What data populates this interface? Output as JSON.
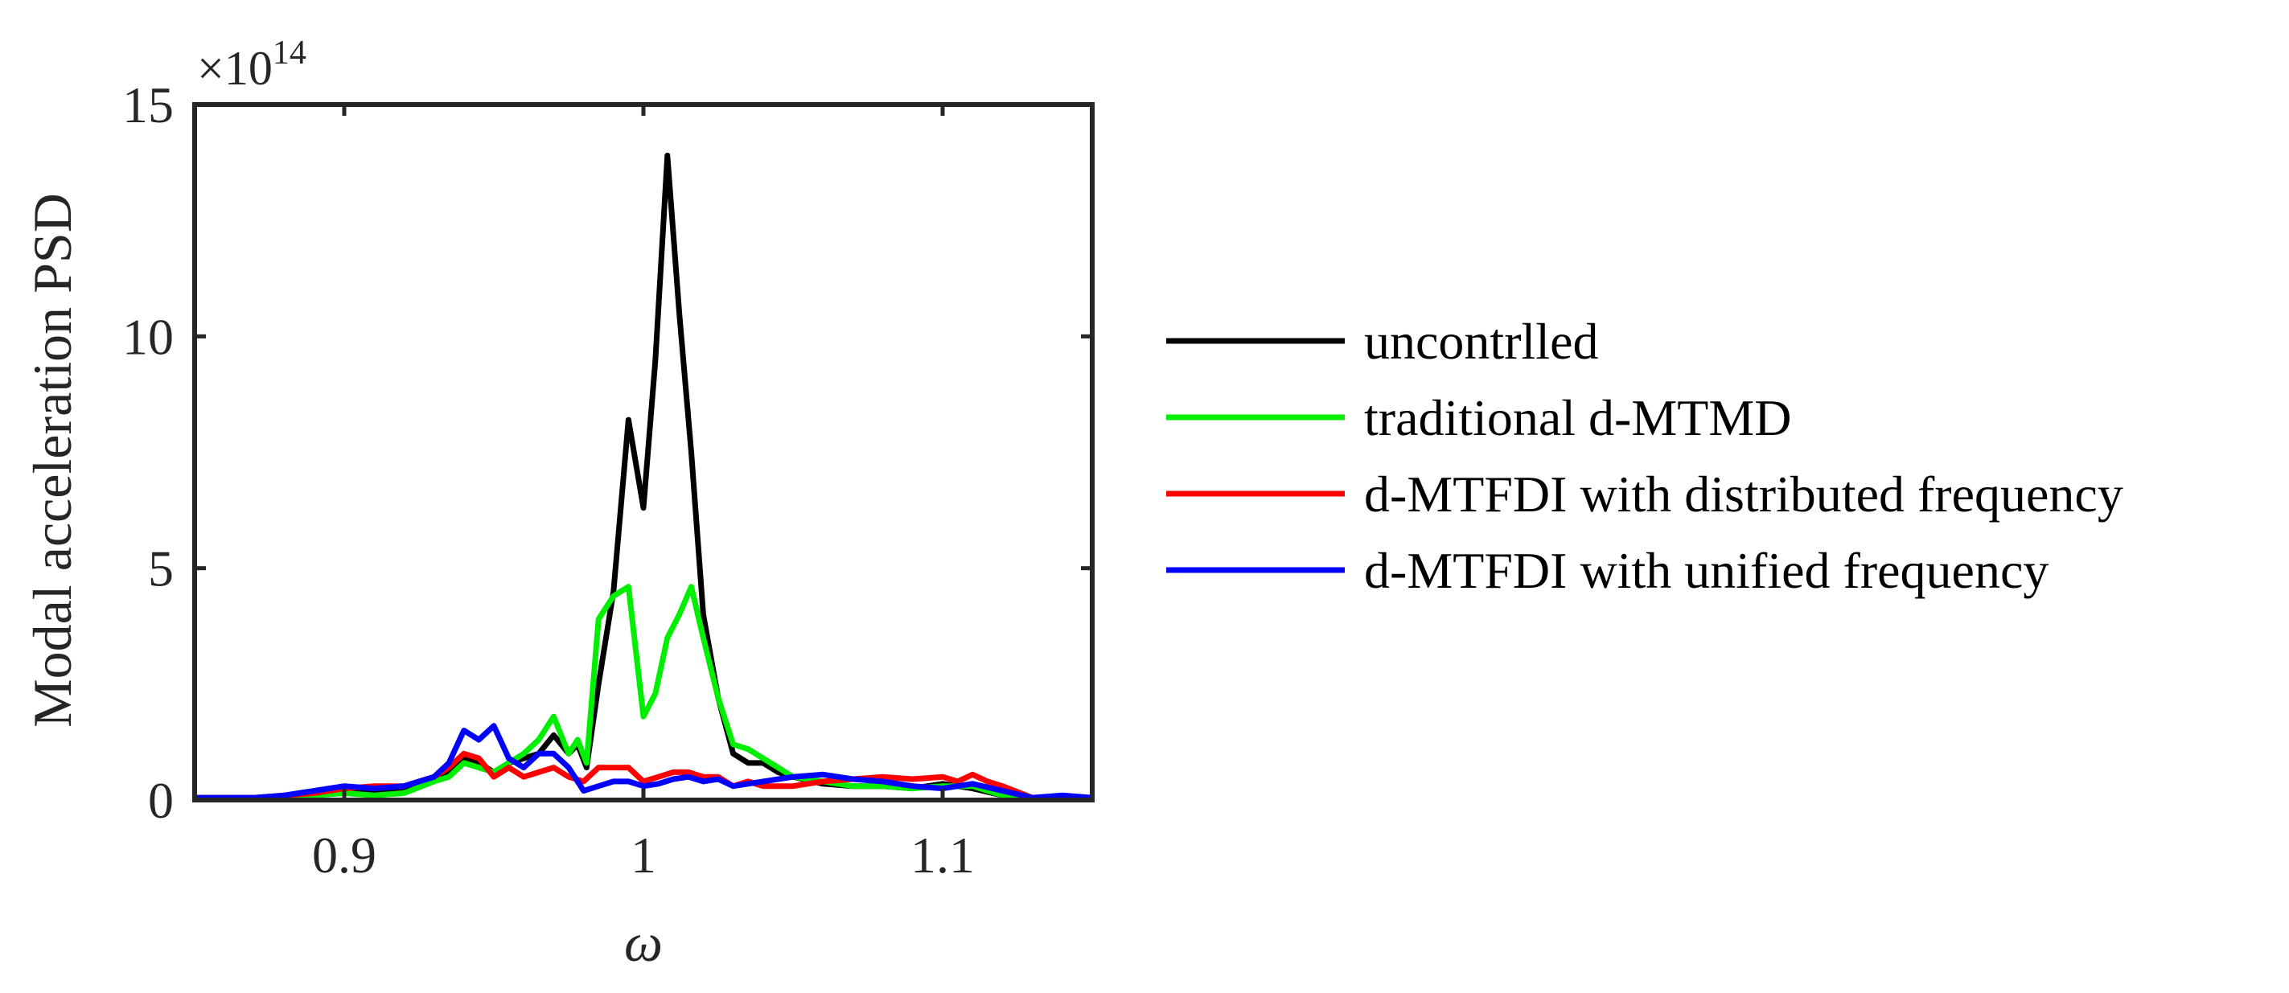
{
  "chart_data": {
    "type": "line",
    "title": "",
    "xlabel": "ω",
    "ylabel": "Modal acceleration PSD",
    "exponent_label": {
      "base": "×10",
      "power": "14"
    },
    "xlim": [
      0.85,
      1.15
    ],
    "ylim": [
      0,
      15
    ],
    "xticks": [
      0.9,
      1.0,
      1.1
    ],
    "xtick_labels": [
      "0.9",
      "1",
      "1.1"
    ],
    "yticks": [
      0,
      5,
      10,
      15
    ],
    "ytick_labels": [
      "0",
      "5",
      "10",
      "15"
    ],
    "y_units_multiplier": 100000000000000.0,
    "grid": false,
    "legend_position": "outside-right",
    "series": [
      {
        "name": "uncontrlled",
        "color": "#000000",
        "x": [
          0.85,
          0.86,
          0.87,
          0.88,
          0.89,
          0.9,
          0.91,
          0.92,
          0.93,
          0.935,
          0.94,
          0.945,
          0.95,
          0.955,
          0.96,
          0.965,
          0.97,
          0.975,
          0.978,
          0.981,
          0.985,
          0.99,
          0.995,
          1.0,
          1.004,
          1.008,
          1.012,
          1.016,
          1.02,
          1.025,
          1.03,
          1.035,
          1.04,
          1.045,
          1.05,
          1.06,
          1.07,
          1.08,
          1.09,
          1.1,
          1.11,
          1.12,
          1.13,
          1.14,
          1.15
        ],
        "y": [
          0.05,
          0.05,
          0.03,
          0.05,
          0.15,
          0.2,
          0.15,
          0.2,
          0.4,
          0.6,
          0.9,
          0.8,
          0.6,
          0.8,
          0.9,
          1.0,
          1.4,
          1.0,
          1.2,
          0.7,
          2.5,
          4.5,
          8.2,
          6.3,
          9.5,
          13.9,
          10.5,
          7.5,
          4.0,
          2.2,
          1.0,
          0.8,
          0.8,
          0.6,
          0.5,
          0.35,
          0.3,
          0.3,
          0.25,
          0.35,
          0.25,
          0.1,
          0.05,
          0.05,
          0.03
        ]
      },
      {
        "name": "traditional d-MTMD",
        "color": "#00ee00",
        "x": [
          0.85,
          0.86,
          0.87,
          0.88,
          0.89,
          0.9,
          0.91,
          0.92,
          0.93,
          0.935,
          0.94,
          0.945,
          0.95,
          0.955,
          0.96,
          0.965,
          0.97,
          0.975,
          0.978,
          0.981,
          0.985,
          0.99,
          0.995,
          1.0,
          1.004,
          1.008,
          1.012,
          1.016,
          1.02,
          1.025,
          1.03,
          1.035,
          1.04,
          1.045,
          1.05,
          1.06,
          1.07,
          1.08,
          1.09,
          1.1,
          1.11,
          1.12,
          1.13,
          1.14,
          1.15
        ],
        "y": [
          0.05,
          0.05,
          0.03,
          0.05,
          0.1,
          0.15,
          0.1,
          0.15,
          0.4,
          0.5,
          0.8,
          0.7,
          0.6,
          0.8,
          1.0,
          1.3,
          1.8,
          1.0,
          1.3,
          0.8,
          3.9,
          4.4,
          4.6,
          1.8,
          2.3,
          3.5,
          4.0,
          4.6,
          3.5,
          2.2,
          1.2,
          1.1,
          0.9,
          0.7,
          0.5,
          0.4,
          0.3,
          0.3,
          0.25,
          0.3,
          0.3,
          0.1,
          0.05,
          0.05,
          0.03
        ]
      },
      {
        "name": "d-MTFDI with distributed frequency",
        "color": "#ff0000",
        "x": [
          0.85,
          0.86,
          0.87,
          0.88,
          0.89,
          0.9,
          0.91,
          0.92,
          0.93,
          0.935,
          0.94,
          0.945,
          0.95,
          0.955,
          0.96,
          0.965,
          0.97,
          0.975,
          0.98,
          0.985,
          0.99,
          0.995,
          1.0,
          1.005,
          1.01,
          1.015,
          1.02,
          1.025,
          1.03,
          1.035,
          1.04,
          1.05,
          1.06,
          1.07,
          1.08,
          1.09,
          1.1,
          1.105,
          1.11,
          1.115,
          1.12,
          1.13,
          1.14,
          1.15
        ],
        "y": [
          0.05,
          0.05,
          0.05,
          0.1,
          0.15,
          0.25,
          0.3,
          0.3,
          0.5,
          0.7,
          1.0,
          0.9,
          0.5,
          0.7,
          0.5,
          0.6,
          0.7,
          0.5,
          0.4,
          0.7,
          0.7,
          0.7,
          0.4,
          0.5,
          0.6,
          0.6,
          0.5,
          0.5,
          0.3,
          0.4,
          0.3,
          0.3,
          0.4,
          0.45,
          0.5,
          0.45,
          0.5,
          0.4,
          0.55,
          0.4,
          0.3,
          0.05,
          0.05,
          0.05
        ]
      },
      {
        "name": "d-MTFDI with unified frequency",
        "color": "#0000ff",
        "x": [
          0.85,
          0.86,
          0.87,
          0.88,
          0.89,
          0.9,
          0.91,
          0.92,
          0.93,
          0.935,
          0.94,
          0.945,
          0.95,
          0.955,
          0.96,
          0.965,
          0.97,
          0.975,
          0.98,
          0.985,
          0.99,
          0.995,
          1.0,
          1.005,
          1.01,
          1.015,
          1.02,
          1.025,
          1.03,
          1.035,
          1.04,
          1.05,
          1.06,
          1.07,
          1.08,
          1.09,
          1.1,
          1.11,
          1.12,
          1.13,
          1.14,
          1.15
        ],
        "y": [
          0.05,
          0.05,
          0.05,
          0.1,
          0.2,
          0.3,
          0.25,
          0.3,
          0.5,
          0.8,
          1.5,
          1.3,
          1.6,
          0.9,
          0.7,
          1.0,
          1.0,
          0.7,
          0.2,
          0.3,
          0.4,
          0.4,
          0.3,
          0.35,
          0.45,
          0.5,
          0.4,
          0.45,
          0.3,
          0.35,
          0.4,
          0.5,
          0.55,
          0.45,
          0.4,
          0.3,
          0.25,
          0.35,
          0.2,
          0.05,
          0.1,
          0.05
        ]
      }
    ]
  }
}
